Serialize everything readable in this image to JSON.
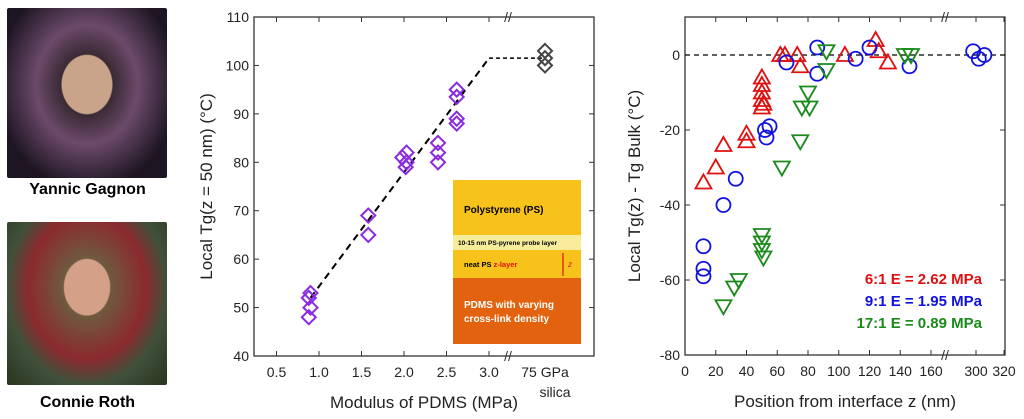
{
  "people": [
    {
      "name": "Yannic Gagnon"
    },
    {
      "name": "Connie Roth"
    }
  ],
  "chart_data": [
    {
      "type": "scatter",
      "xlabel": "Modulus of PDMS (MPa)",
      "ylabel": "Local Tg(z = 50 nm)  (°C)",
      "ylim": [
        40,
        110
      ],
      "xlim": [
        0.3,
        3.5
      ],
      "x_ticks": [
        "0.5",
        "1.0",
        "1.5",
        "2.0",
        "2.5",
        "3.0"
      ],
      "y_ticks": [
        "40",
        "50",
        "60",
        "70",
        "80",
        "90",
        "100",
        "110"
      ],
      "break_label": [
        "75 GPa",
        "silica"
      ],
      "axis_break": true,
      "marker": "diamond",
      "color": "#8a2be2",
      "series": [
        {
          "x": [
            0.88,
            0.9,
            0.88,
            0.9,
            1.58,
            1.58,
            1.98,
            2.03,
            2.03,
            2.02,
            2.4,
            2.4,
            2.4,
            2.62,
            2.62,
            2.62,
            2.62
          ],
          "y": [
            48,
            50,
            52,
            53,
            69,
            65,
            81,
            82,
            80,
            79,
            84,
            82,
            80,
            95,
            93.5,
            89,
            88
          ]
        }
      ],
      "silica_points": {
        "color": "#444444",
        "y": [
          103,
          101.5,
          100
        ]
      },
      "trend_line": {
        "style": "dashed",
        "points": [
          [
            0.9,
            52
          ],
          [
            3.0,
            101.5
          ]
        ],
        "plateau": 101.5
      },
      "inset": {
        "layers": [
          {
            "label": "Polystyrene (PS)",
            "color": "#f7c21a"
          },
          {
            "label": "10-15 nm PS-pyrene probe layer",
            "color": "#f6ec9a"
          },
          {
            "label": "neat PS",
            "label_red": "z-layer",
            "marker": "z",
            "color": "#f7c21a"
          },
          {
            "label": "PDMS with varying",
            "label2": "cross-link density",
            "color": "#e2620f"
          }
        ]
      }
    },
    {
      "type": "scatter",
      "xlabel": "Position from interface z  (nm)",
      "ylabel": "Local Tg(z) - Tg Bulk  (°C)",
      "ylim": [
        -80,
        10
      ],
      "x_ticks": [
        "0",
        "20",
        "40",
        "60",
        "80",
        "100",
        "120",
        "140",
        "160",
        "300",
        "320"
      ],
      "y_ticks": [
        "-80",
        "-60",
        "-40",
        "-20",
        "0"
      ],
      "axis_break": true,
      "reference_line": 0,
      "series": [
        {
          "name": "6:1 E = 2.62 MPa",
          "ratio": "6:1",
          "modulus": "E = 2.62 MPa",
          "color": "#e01010",
          "marker": "triangle-up",
          "x": [
            12,
            20,
            25,
            40,
            40,
            50,
            50,
            50,
            50,
            50,
            51,
            62,
            65,
            73,
            75,
            104,
            124,
            126,
            132
          ],
          "y": [
            -34,
            -30,
            -24,
            -21,
            -23,
            -6,
            -8,
            -10,
            -12,
            -14,
            -13,
            0,
            0,
            0,
            -3,
            0,
            4,
            1,
            -2
          ]
        },
        {
          "name": "9:1 E = 1.95 MPa",
          "ratio": "9:1",
          "modulus": "E = 1.95 MPa",
          "color": "#1010e0",
          "marker": "circle",
          "x": [
            12,
            12,
            12,
            33,
            25,
            52,
            53,
            55,
            66,
            86,
            86,
            111,
            120,
            146,
            298,
            302,
            306
          ],
          "y": [
            -51,
            -57,
            -59,
            -33,
            -40,
            -20,
            -22,
            -19,
            -2,
            2,
            -5,
            -1,
            2,
            -3,
            1,
            -1,
            0
          ]
        },
        {
          "name": "17:1 E = 0.89 MPa",
          "ratio": "17:1",
          "modulus": "E = 0.89 MPa",
          "color": "#1a8a1a",
          "marker": "triangle-down",
          "x": [
            25,
            32,
            35,
            50,
            50,
            50,
            51,
            63,
            75,
            76,
            80,
            81,
            92,
            92,
            143,
            147
          ],
          "y": [
            -67,
            -62,
            -60,
            -48,
            -50,
            -52,
            -54,
            -30,
            -23,
            -14,
            -10,
            -14,
            1,
            -4,
            0,
            0
          ]
        }
      ],
      "legend": "bottom-right"
    }
  ]
}
